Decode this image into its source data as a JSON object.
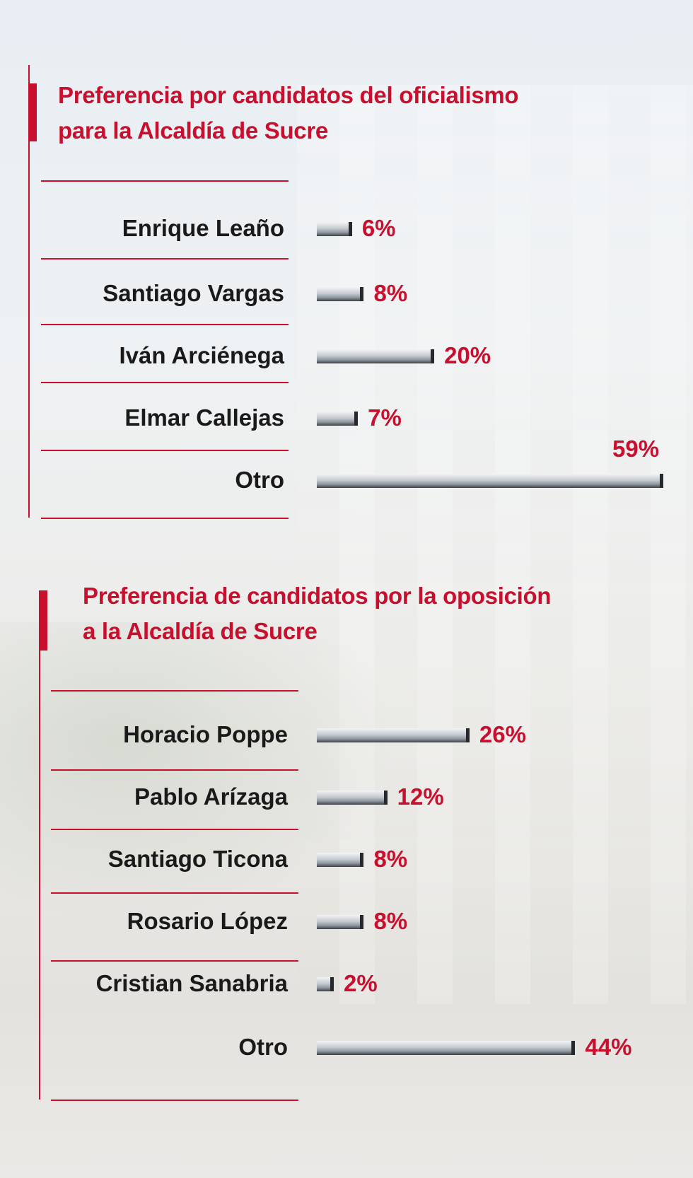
{
  "chart_data": [
    {
      "type": "bar",
      "orientation": "horizontal",
      "title": "Preferencia por candidatos del oficialismo para la Alcaldía de Sucre",
      "title_lines": [
        "Preferencia por candidatos del oficialismo",
        "para la Alcaldía de Sucre"
      ],
      "categories": [
        "Enrique Leaño",
        "Santiago Vargas",
        "Iván Arciénega",
        "Elmar Callejas",
        "Otro"
      ],
      "values": [
        6,
        8,
        20,
        7,
        59
      ],
      "value_labels": [
        "6%",
        "8%",
        "20%",
        "7%",
        "59%"
      ],
      "unit": "%",
      "xlim": [
        0,
        59
      ]
    },
    {
      "type": "bar",
      "orientation": "horizontal",
      "title": "Preferencia de candidatos por la oposición a la Alcaldía de Sucre",
      "title_lines": [
        "Preferencia de candidatos por la oposición",
        "a la Alcaldía de Sucre"
      ],
      "categories": [
        "Horacio Poppe",
        "Pablo Arízaga",
        "Santiago Ticona",
        "Rosario López",
        "Cristian Sanabria",
        "Otro"
      ],
      "values": [
        26,
        12,
        8,
        8,
        2,
        44
      ],
      "value_labels": [
        "26%",
        "12%",
        "8%",
        "8%",
        "2%",
        "44%"
      ],
      "unit": "%",
      "xlim": [
        0,
        59
      ]
    }
  ],
  "colors": {
    "accent": "#c8102e",
    "label_text": "#1a1a1a",
    "bar_dark": "#26292c",
    "bar_light": "#c7ccd2"
  }
}
